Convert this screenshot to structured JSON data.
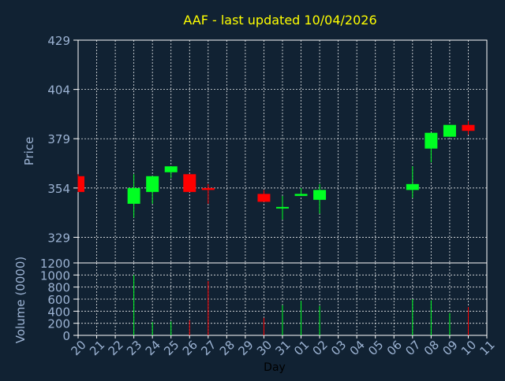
{
  "title": "AAF - last updated 10/04/2026",
  "colors": {
    "background": "#112233",
    "plot_background": "#112233",
    "grid": "#ffffff",
    "axis_text": "#9cb3d3",
    "title": "#ffff00",
    "up": "#00ff22",
    "down": "#ff0000",
    "axis_line": "#ffffff"
  },
  "chart_data": [
    {
      "type": "candlestick",
      "ylabel": "Price",
      "ylim": [
        316,
        429
      ],
      "yticks": [
        329,
        354,
        379,
        404,
        429
      ],
      "grid": true,
      "x": [
        "20",
        "21",
        "22",
        "23",
        "24",
        "25",
        "26",
        "27",
        "28",
        "29",
        "30",
        "31",
        "01",
        "02",
        "03",
        "04",
        "05",
        "06",
        "07",
        "08",
        "09",
        "10",
        "11"
      ],
      "candles": [
        {
          "x": "20",
          "open": 360,
          "high": 361,
          "low": 352,
          "close": 352,
          "direction": "down"
        },
        {
          "x": "23",
          "open": 346,
          "high": 361,
          "low": 339,
          "close": 354,
          "direction": "up"
        },
        {
          "x": "24",
          "open": 352,
          "high": 360,
          "low": 346,
          "close": 360,
          "direction": "up"
        },
        {
          "x": "25",
          "open": 362,
          "high": 365,
          "low": 359,
          "close": 365,
          "direction": "up"
        },
        {
          "x": "26",
          "open": 361,
          "high": 361,
          "low": 352,
          "close": 352,
          "direction": "down"
        },
        {
          "x": "27",
          "open": 354,
          "high": 356,
          "low": 346,
          "close": 353,
          "direction": "down"
        },
        {
          "x": "30",
          "open": 351,
          "high": 353,
          "low": 347,
          "close": 347,
          "direction": "down"
        },
        {
          "x": "31",
          "open": 344,
          "high": 350,
          "low": 338,
          "close": 344,
          "direction": "up"
        },
        {
          "x": "01",
          "open": 350,
          "high": 354,
          "low": 350,
          "close": 351,
          "direction": "up"
        },
        {
          "x": "02",
          "open": 348,
          "high": 356,
          "low": 341,
          "close": 353,
          "direction": "up"
        },
        {
          "x": "07",
          "open": 353,
          "high": 365,
          "low": 349,
          "close": 356,
          "direction": "up"
        },
        {
          "x": "08",
          "open": 374,
          "high": 382,
          "low": 367,
          "close": 382,
          "direction": "up"
        },
        {
          "x": "09",
          "open": 380,
          "high": 386,
          "low": 380,
          "close": 386,
          "direction": "up"
        },
        {
          "x": "10",
          "open": 386,
          "high": 388,
          "low": 381,
          "close": 383,
          "direction": "down"
        }
      ]
    },
    {
      "type": "bar",
      "ylabel": "Volume (0000)",
      "xlabel": "Day",
      "ylim": [
        0,
        1200
      ],
      "yticks": [
        0,
        200,
        400,
        600,
        800,
        1000,
        1200
      ],
      "grid": true,
      "x": [
        "20",
        "21",
        "22",
        "23",
        "24",
        "25",
        "26",
        "27",
        "28",
        "29",
        "30",
        "31",
        "01",
        "02",
        "03",
        "04",
        "05",
        "06",
        "07",
        "08",
        "09",
        "10",
        "11"
      ],
      "volumes": [
        {
          "x": "20",
          "value": 0,
          "direction": "down"
        },
        {
          "x": "23",
          "value": 1000,
          "direction": "up"
        },
        {
          "x": "24",
          "value": 220,
          "direction": "up"
        },
        {
          "x": "25",
          "value": 230,
          "direction": "up"
        },
        {
          "x": "26",
          "value": 250,
          "direction": "down"
        },
        {
          "x": "27",
          "value": 900,
          "direction": "down"
        },
        {
          "x": "30",
          "value": 290,
          "direction": "down"
        },
        {
          "x": "31",
          "value": 500,
          "direction": "up"
        },
        {
          "x": "01",
          "value": 570,
          "direction": "up"
        },
        {
          "x": "02",
          "value": 490,
          "direction": "up"
        },
        {
          "x": "07",
          "value": 600,
          "direction": "up"
        },
        {
          "x": "08",
          "value": 580,
          "direction": "up"
        },
        {
          "x": "09",
          "value": 370,
          "direction": "up"
        },
        {
          "x": "10",
          "value": 470,
          "direction": "down"
        }
      ]
    }
  ]
}
